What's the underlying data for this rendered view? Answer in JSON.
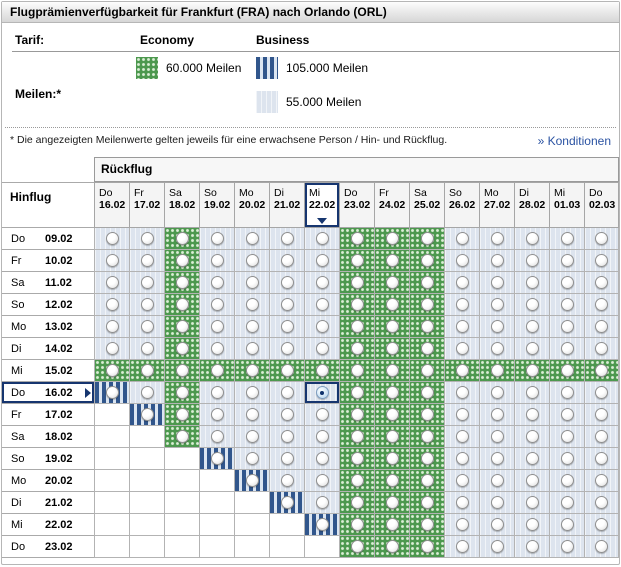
{
  "title": "Flugprämienverfügbarkeit für Frankfurt (FRA) nach Orlando (ORL)",
  "legend": {
    "tarif_label": "Tarif:",
    "economy_label": "Economy",
    "business_label": "Business",
    "meilen_label": "Meilen:*",
    "economy_items": [
      {
        "miles": "60.000 Meilen",
        "pattern": "green-dots",
        "color": "#4c984e"
      }
    ],
    "business_items": [
      {
        "miles": "105.000 Meilen",
        "pattern": "blue-stripes",
        "color": "#31568c"
      },
      {
        "miles": "55.000 Meilen",
        "pattern": "light-blue-stripes",
        "color": "#dde4ee"
      }
    ]
  },
  "footnote": {
    "text": "* Die angezeigten Meilenwerte gelten jeweils für eine erwachsene Person / Hin- und Rückflug.",
    "link": "» Konditionen"
  },
  "colors": {
    "selection_border": "#16356f",
    "economy_green": "#4c984e",
    "business_blue": "#31568c",
    "business_light": "#dde4ee",
    "link_blue": "#2a52a2"
  },
  "grid": {
    "rueckflug_label": "Rückflug",
    "hinflug_label": "Hinflug",
    "cell_legend": {
      "g": "economy-60000-meilen",
      "b": "business-105000-meilen",
      "l": "business-55000-meilen",
      "w": "unavailable",
      "s": "selected-55000-meilen"
    },
    "columns": [
      {
        "day": "Do",
        "date": "16.02"
      },
      {
        "day": "Fr",
        "date": "17.02"
      },
      {
        "day": "Sa",
        "date": "18.02"
      },
      {
        "day": "So",
        "date": "19.02"
      },
      {
        "day": "Mo",
        "date": "20.02"
      },
      {
        "day": "Di",
        "date": "21.02"
      },
      {
        "day": "Mi",
        "date": "22.02",
        "selected": true
      },
      {
        "day": "Do",
        "date": "23.02"
      },
      {
        "day": "Fr",
        "date": "24.02"
      },
      {
        "day": "Sa",
        "date": "25.02"
      },
      {
        "day": "So",
        "date": "26.02"
      },
      {
        "day": "Mo",
        "date": "27.02"
      },
      {
        "day": "Di",
        "date": "28.02"
      },
      {
        "day": "Mi",
        "date": "01.03"
      },
      {
        "day": "Do",
        "date": "02.03"
      }
    ],
    "rows": [
      {
        "day": "Do",
        "date": "09.02",
        "cells": [
          "l",
          "l",
          "g",
          "l",
          "l",
          "l",
          "l",
          "g",
          "g",
          "g",
          "l",
          "l",
          "l",
          "l",
          "l"
        ]
      },
      {
        "day": "Fr",
        "date": "10.02",
        "cells": [
          "l",
          "l",
          "g",
          "l",
          "l",
          "l",
          "l",
          "g",
          "g",
          "g",
          "l",
          "l",
          "l",
          "l",
          "l"
        ]
      },
      {
        "day": "Sa",
        "date": "11.02",
        "cells": [
          "l",
          "l",
          "g",
          "l",
          "l",
          "l",
          "l",
          "g",
          "g",
          "g",
          "l",
          "l",
          "l",
          "l",
          "l"
        ]
      },
      {
        "day": "So",
        "date": "12.02",
        "cells": [
          "l",
          "l",
          "g",
          "l",
          "l",
          "l",
          "l",
          "g",
          "g",
          "g",
          "l",
          "l",
          "l",
          "l",
          "l"
        ]
      },
      {
        "day": "Mo",
        "date": "13.02",
        "cells": [
          "l",
          "l",
          "g",
          "l",
          "l",
          "l",
          "l",
          "g",
          "g",
          "g",
          "l",
          "l",
          "l",
          "l",
          "l"
        ]
      },
      {
        "day": "Di",
        "date": "14.02",
        "cells": [
          "l",
          "l",
          "g",
          "l",
          "l",
          "l",
          "l",
          "g",
          "g",
          "g",
          "l",
          "l",
          "l",
          "l",
          "l"
        ]
      },
      {
        "day": "Mi",
        "date": "15.02",
        "cells": [
          "g",
          "g",
          "g",
          "g",
          "g",
          "g",
          "g",
          "g",
          "g",
          "g",
          "g",
          "g",
          "g",
          "g",
          "g"
        ]
      },
      {
        "day": "Do",
        "date": "16.02",
        "selected": true,
        "cells": [
          "b",
          "l",
          "g",
          "l",
          "l",
          "l",
          "s",
          "g",
          "g",
          "g",
          "l",
          "l",
          "l",
          "l",
          "l"
        ]
      },
      {
        "day": "Fr",
        "date": "17.02",
        "cells": [
          "w",
          "b",
          "g",
          "l",
          "l",
          "l",
          "l",
          "g",
          "g",
          "g",
          "l",
          "l",
          "l",
          "l",
          "l"
        ]
      },
      {
        "day": "Sa",
        "date": "18.02",
        "cells": [
          "w",
          "w",
          "g",
          "l",
          "l",
          "l",
          "l",
          "g",
          "g",
          "g",
          "l",
          "l",
          "l",
          "l",
          "l"
        ]
      },
      {
        "day": "So",
        "date": "19.02",
        "cells": [
          "w",
          "w",
          "w",
          "b",
          "l",
          "l",
          "l",
          "g",
          "g",
          "g",
          "l",
          "l",
          "l",
          "l",
          "l"
        ]
      },
      {
        "day": "Mo",
        "date": "20.02",
        "cells": [
          "w",
          "w",
          "w",
          "w",
          "b",
          "l",
          "l",
          "g",
          "g",
          "g",
          "l",
          "l",
          "l",
          "l",
          "l"
        ]
      },
      {
        "day": "Di",
        "date": "21.02",
        "cells": [
          "w",
          "w",
          "w",
          "w",
          "w",
          "b",
          "l",
          "g",
          "g",
          "g",
          "l",
          "l",
          "l",
          "l",
          "l"
        ]
      },
      {
        "day": "Mi",
        "date": "22.02",
        "cells": [
          "w",
          "w",
          "w",
          "w",
          "w",
          "w",
          "b",
          "g",
          "g",
          "g",
          "l",
          "l",
          "l",
          "l",
          "l"
        ]
      },
      {
        "day": "Do",
        "date": "23.02",
        "cells": [
          "w",
          "w",
          "w",
          "w",
          "w",
          "w",
          "w",
          "g",
          "g",
          "g",
          "l",
          "l",
          "l",
          "l",
          "l"
        ]
      }
    ]
  }
}
